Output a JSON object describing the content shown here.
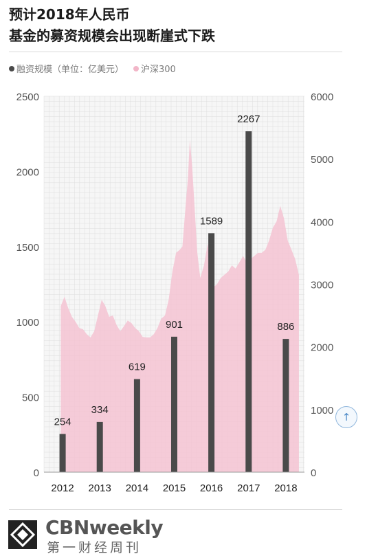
{
  "header": {
    "title_line1": "预计2018年人民币",
    "title_line2": "基金的募资规模会出现断崖式下跌"
  },
  "chart_data": {
    "type": "bar",
    "categories": [
      "2012",
      "2013",
      "2014",
      "2015",
      "2016",
      "2017",
      "2018"
    ],
    "series": [
      {
        "name": "融资规模（单位：亿美元）",
        "values": [
          254,
          334,
          619,
          901,
          1589,
          2267,
          886
        ]
      }
    ],
    "data_labels": [
      "254",
      "334",
      "619",
      "901",
      "1589",
      "2267",
      "886"
    ],
    "ylim": [
      0,
      2500
    ],
    "yticks": [
      "0",
      "500",
      "1000",
      "1500",
      "2000",
      "2500"
    ],
    "y2lim": [
      0,
      6000
    ],
    "y2ticks": [
      "0",
      "1000",
      "2000",
      "3000",
      "4000",
      "5000",
      "6000"
    ],
    "overlay": {
      "name": "沪深300",
      "type": "area",
      "x": [
        2011.95,
        2012.05,
        2012.15,
        2012.25,
        2012.35,
        2012.45,
        2012.55,
        2012.65,
        2012.75,
        2012.85,
        2012.95,
        2013.05,
        2013.15,
        2013.25,
        2013.35,
        2013.45,
        2013.55,
        2013.65,
        2013.75,
        2013.85,
        2013.95,
        2014.05,
        2014.15,
        2014.25,
        2014.35,
        2014.45,
        2014.55,
        2014.65,
        2014.75,
        2014.85,
        2014.95,
        2015.05,
        2015.15,
        2015.22,
        2015.3,
        2015.37,
        2015.42,
        2015.48,
        2015.55,
        2015.62,
        2015.7,
        2015.8,
        2015.9,
        2016.0,
        2016.05,
        2016.15,
        2016.25,
        2016.35,
        2016.45,
        2016.55,
        2016.65,
        2016.75,
        2016.85,
        2016.95,
        2017.05,
        2017.15,
        2017.25,
        2017.35,
        2017.45,
        2017.55,
        2017.65,
        2017.75,
        2017.85,
        2017.95,
        2018.05,
        2018.15,
        2018.25,
        2018.35
      ],
      "values": [
        2650,
        2800,
        2620,
        2480,
        2400,
        2300,
        2280,
        2200,
        2150,
        2250,
        2500,
        2750,
        2650,
        2480,
        2500,
        2350,
        2250,
        2330,
        2420,
        2380,
        2300,
        2250,
        2160,
        2150,
        2150,
        2200,
        2300,
        2450,
        2500,
        2750,
        3200,
        3500,
        3550,
        3600,
        4200,
        4700,
        5300,
        4900,
        4200,
        3500,
        3100,
        3300,
        3650,
        3100,
        2950,
        3000,
        3100,
        3150,
        3200,
        3300,
        3250,
        3350,
        3450,
        3350,
        3400,
        3450,
        3500,
        3500,
        3550,
        3700,
        3900,
        4000,
        4250,
        4050,
        3700,
        3550,
        3400,
        3150
      ]
    },
    "grid": true
  },
  "footer": {
    "scroll_top_icon": "↑",
    "logo_text": "CBNweekly",
    "logo_subtext": "第一财经周刊"
  }
}
